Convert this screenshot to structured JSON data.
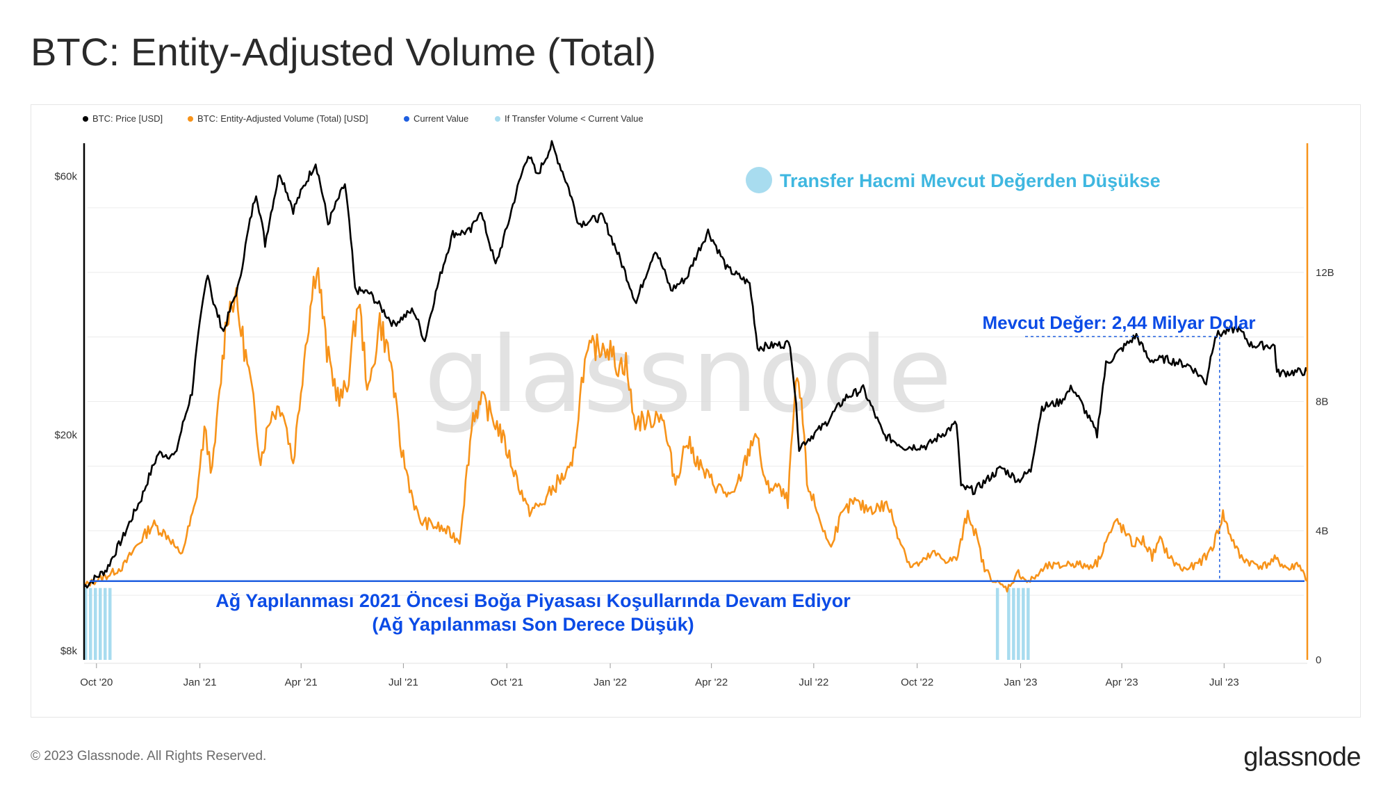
{
  "title": "BTC: Entity-Adjusted Volume (Total)",
  "footer": {
    "copyright": "© 2023 Glassnode. All Rights Reserved.",
    "logo": "glassnode"
  },
  "watermark": "glassnode",
  "colors": {
    "price": "#000000",
    "volume": "#f7931a",
    "current_value": "#1f5fe0",
    "below_current": "#a8dcef",
    "annotation_blue": "#0b4be6",
    "annotation_cyan": "#3fb7e0",
    "watermark": "#d6d6d6"
  },
  "annotations": {
    "legend_marker": "Transfer Hacmi Mevcut Değerden Düşükse",
    "current_value": "Mevcut Değer: 2,44 Milyar Dolar",
    "network_line1": "Ağ Yapılanması 2021 Öncesi Boğa Piyasası Koşullarında Devam Ediyor",
    "network_line2": "(Ağ Yapılanması Son Derece Düşük)"
  },
  "chart_data": {
    "type": "line",
    "legend": [
      {
        "label": "BTC: Price [USD]",
        "color": "#000000"
      },
      {
        "label": "BTC: Entity-Adjusted Volume (Total) [USD]",
        "color": "#f7931a"
      },
      {
        "label": "Current Value",
        "color": "#1f5fe0"
      },
      {
        "label": "If Transfer Volume < Current Value",
        "color": "#a8dcef"
      }
    ],
    "x_range": [
      "2020-09-20",
      "2023-09-13"
    ],
    "x_ticks": [
      "Oct '20",
      "Jan '21",
      "Apr '21",
      "Jul '21",
      "Oct '21",
      "Jan '22",
      "Apr '22",
      "Jul '22",
      "Oct '22",
      "Jan '23",
      "Apr '23",
      "Jul '23"
    ],
    "left_axis": {
      "scale": "log",
      "range": [
        7700,
        69000
      ],
      "ticks": [
        "$8k",
        "$20k",
        "$60k"
      ]
    },
    "right_axis": {
      "scale": "linear",
      "range": [
        0,
        16000000000
      ],
      "ticks": [
        "0",
        "4B",
        "8B",
        "12B"
      ]
    },
    "current_value": 2440000000,
    "current_value_date": "2023-06-27",
    "price": [
      [
        "2020-09-20",
        10500
      ],
      [
        "2020-10-10",
        11300
      ],
      [
        "2020-10-25",
        13000
      ],
      [
        "2020-11-10",
        15300
      ],
      [
        "2020-11-25",
        18500
      ],
      [
        "2020-12-10",
        18300
      ],
      [
        "2020-12-25",
        24000
      ],
      [
        "2021-01-08",
        40000
      ],
      [
        "2021-01-13",
        35000
      ],
      [
        "2021-01-22",
        31000
      ],
      [
        "2021-02-05",
        38000
      ],
      [
        "2021-02-20",
        56000
      ],
      [
        "2021-02-28",
        45000
      ],
      [
        "2021-03-13",
        61000
      ],
      [
        "2021-03-25",
        52000
      ],
      [
        "2021-04-14",
        63500
      ],
      [
        "2021-04-25",
        49000
      ],
      [
        "2021-05-10",
        58000
      ],
      [
        "2021-05-19",
        37000
      ],
      [
        "2021-06-01",
        36500
      ],
      [
        "2021-06-22",
        32000
      ],
      [
        "2021-07-10",
        34000
      ],
      [
        "2021-07-20",
        29800
      ],
      [
        "2021-08-14",
        47000
      ],
      [
        "2021-08-30",
        47500
      ],
      [
        "2021-09-07",
        52000
      ],
      [
        "2021-09-21",
        41000
      ],
      [
        "2021-10-01",
        48000
      ],
      [
        "2021-10-20",
        66000
      ],
      [
        "2021-10-28",
        60000
      ],
      [
        "2021-11-10",
        68500
      ],
      [
        "2021-11-25",
        57000
      ],
      [
        "2021-12-04",
        49000
      ],
      [
        "2021-12-25",
        50500
      ],
      [
        "2022-01-10",
        42000
      ],
      [
        "2022-01-24",
        35000
      ],
      [
        "2022-02-10",
        44000
      ],
      [
        "2022-02-24",
        37000
      ],
      [
        "2022-03-10",
        39000
      ],
      [
        "2022-03-29",
        47500
      ],
      [
        "2022-04-15",
        40500
      ],
      [
        "2022-05-05",
        38000
      ],
      [
        "2022-05-12",
        29000
      ],
      [
        "2022-06-10",
        29500
      ],
      [
        "2022-06-18",
        19000
      ],
      [
        "2022-07-10",
        20800
      ],
      [
        "2022-07-30",
        23500
      ],
      [
        "2022-08-14",
        24300
      ],
      [
        "2022-09-01",
        20000
      ],
      [
        "2022-09-20",
        19000
      ],
      [
        "2022-10-10",
        19100
      ],
      [
        "2022-11-05",
        21000
      ],
      [
        "2022-11-09",
        16000
      ],
      [
        "2022-11-21",
        15800
      ],
      [
        "2022-12-15",
        17400
      ],
      [
        "2022-12-30",
        16500
      ],
      [
        "2023-01-10",
        17200
      ],
      [
        "2023-01-20",
        22500
      ],
      [
        "2023-02-05",
        23000
      ],
      [
        "2023-02-16",
        24500
      ],
      [
        "2023-03-10",
        20000
      ],
      [
        "2023-03-18",
        27000
      ],
      [
        "2023-04-14",
        30500
      ],
      [
        "2023-04-25",
        27500
      ],
      [
        "2023-05-10",
        27600
      ],
      [
        "2023-06-01",
        26800
      ],
      [
        "2023-06-15",
        25000
      ],
      [
        "2023-06-23",
        30500
      ],
      [
        "2023-07-13",
        31500
      ],
      [
        "2023-07-25",
        29300
      ],
      [
        "2023-08-15",
        29200
      ],
      [
        "2023-08-17",
        26000
      ],
      [
        "2023-09-13",
        26200
      ]
    ],
    "volume": [
      [
        "2020-09-20",
        2300000000
      ],
      [
        "2020-10-10",
        2600000000
      ],
      [
        "2020-10-25",
        2900000000
      ],
      [
        "2020-11-05",
        3500000000
      ],
      [
        "2020-11-20",
        4200000000
      ],
      [
        "2020-12-05",
        3800000000
      ],
      [
        "2020-12-15",
        3200000000
      ],
      [
        "2020-12-28",
        4800000000
      ],
      [
        "2021-01-05",
        7100000000
      ],
      [
        "2021-01-12",
        5800000000
      ],
      [
        "2021-01-25",
        10700000000
      ],
      [
        "2021-02-01",
        11300000000
      ],
      [
        "2021-02-15",
        8600000000
      ],
      [
        "2021-02-24",
        6200000000
      ],
      [
        "2021-03-05",
        7600000000
      ],
      [
        "2021-03-15",
        7900000000
      ],
      [
        "2021-03-25",
        6100000000
      ],
      [
        "2021-04-05",
        9800000000
      ],
      [
        "2021-04-15",
        12400000000
      ],
      [
        "2021-04-24",
        9500000000
      ],
      [
        "2021-05-05",
        8000000000
      ],
      [
        "2021-05-12",
        8500000000
      ],
      [
        "2021-05-22",
        11200000000
      ],
      [
        "2021-05-31",
        8200000000
      ],
      [
        "2021-06-10",
        10500000000
      ],
      [
        "2021-06-20",
        9200000000
      ],
      [
        "2021-06-28",
        6700000000
      ],
      [
        "2021-07-08",
        5200000000
      ],
      [
        "2021-07-15",
        4300000000
      ],
      [
        "2021-07-25",
        4200000000
      ],
      [
        "2021-08-08",
        4000000000
      ],
      [
        "2021-08-20",
        3700000000
      ],
      [
        "2021-09-01",
        7600000000
      ],
      [
        "2021-09-10",
        8000000000
      ],
      [
        "2021-09-25",
        7100000000
      ],
      [
        "2021-10-10",
        5600000000
      ],
      [
        "2021-10-20",
        4600000000
      ],
      [
        "2021-11-01",
        4800000000
      ],
      [
        "2021-11-15",
        5500000000
      ],
      [
        "2021-11-28",
        5900000000
      ],
      [
        "2021-12-08",
        9000000000
      ],
      [
        "2021-12-15",
        9600000000
      ],
      [
        "2021-12-28",
        9800000000
      ],
      [
        "2022-01-08",
        9100000000
      ],
      [
        "2022-01-15",
        9200000000
      ],
      [
        "2022-01-22",
        7400000000
      ],
      [
        "2022-02-05",
        7400000000
      ],
      [
        "2022-02-15",
        7700000000
      ],
      [
        "2022-02-28",
        5500000000
      ],
      [
        "2022-03-10",
        6800000000
      ],
      [
        "2022-03-25",
        5800000000
      ],
      [
        "2022-04-05",
        5400000000
      ],
      [
        "2022-04-20",
        5000000000
      ],
      [
        "2022-05-01",
        6100000000
      ],
      [
        "2022-05-10",
        7100000000
      ],
      [
        "2022-05-20",
        5300000000
      ],
      [
        "2022-05-28",
        5400000000
      ],
      [
        "2022-06-08",
        4900000000
      ],
      [
        "2022-06-15",
        8500000000
      ],
      [
        "2022-06-20",
        8000000000
      ],
      [
        "2022-06-25",
        5500000000
      ],
      [
        "2022-07-05",
        4500000000
      ],
      [
        "2022-07-15",
        3500000000
      ],
      [
        "2022-07-25",
        4400000000
      ],
      [
        "2022-08-05",
        4900000000
      ],
      [
        "2022-08-15",
        4700000000
      ],
      [
        "2022-08-25",
        4700000000
      ],
      [
        "2022-09-05",
        4800000000
      ],
      [
        "2022-09-15",
        3800000000
      ],
      [
        "2022-09-25",
        2900000000
      ],
      [
        "2022-10-05",
        3000000000
      ],
      [
        "2022-10-15",
        3300000000
      ],
      [
        "2022-10-25",
        3100000000
      ],
      [
        "2022-11-05",
        3100000000
      ],
      [
        "2022-11-10",
        3800000000
      ],
      [
        "2022-11-15",
        4600000000
      ],
      [
        "2022-11-22",
        3900000000
      ],
      [
        "2022-11-30",
        2800000000
      ],
      [
        "2022-12-10",
        2400000000
      ],
      [
        "2022-12-20",
        2200000000
      ],
      [
        "2022-12-30",
        2700000000
      ],
      [
        "2023-01-08",
        2400000000
      ],
      [
        "2023-01-15",
        2600000000
      ],
      [
        "2023-01-25",
        2900000000
      ],
      [
        "2023-02-05",
        2900000000
      ],
      [
        "2023-02-15",
        3000000000
      ],
      [
        "2023-02-28",
        2900000000
      ],
      [
        "2023-03-10",
        3000000000
      ],
      [
        "2023-03-18",
        3700000000
      ],
      [
        "2023-03-28",
        4300000000
      ],
      [
        "2023-04-10",
        3600000000
      ],
      [
        "2023-04-20",
        3700000000
      ],
      [
        "2023-04-28",
        3200000000
      ],
      [
        "2023-05-05",
        3700000000
      ],
      [
        "2023-05-15",
        3100000000
      ],
      [
        "2023-05-25",
        2800000000
      ],
      [
        "2023-06-05",
        2900000000
      ],
      [
        "2023-06-15",
        3200000000
      ],
      [
        "2023-06-22",
        3600000000
      ],
      [
        "2023-06-30",
        4500000000
      ],
      [
        "2023-07-05",
        4000000000
      ],
      [
        "2023-07-15",
        3200000000
      ],
      [
        "2023-07-25",
        3000000000
      ],
      [
        "2023-08-05",
        2900000000
      ],
      [
        "2023-08-15",
        3100000000
      ],
      [
        "2023-08-20",
        3000000000
      ],
      [
        "2023-08-28",
        2800000000
      ],
      [
        "2023-09-05",
        3000000000
      ],
      [
        "2023-09-13",
        2440000000
      ]
    ],
    "below_current_periods": [
      [
        "2020-09-20",
        "2020-10-14"
      ],
      [
        "2022-12-10",
        "2022-12-14"
      ],
      [
        "2022-12-20",
        "2023-01-09"
      ]
    ]
  }
}
